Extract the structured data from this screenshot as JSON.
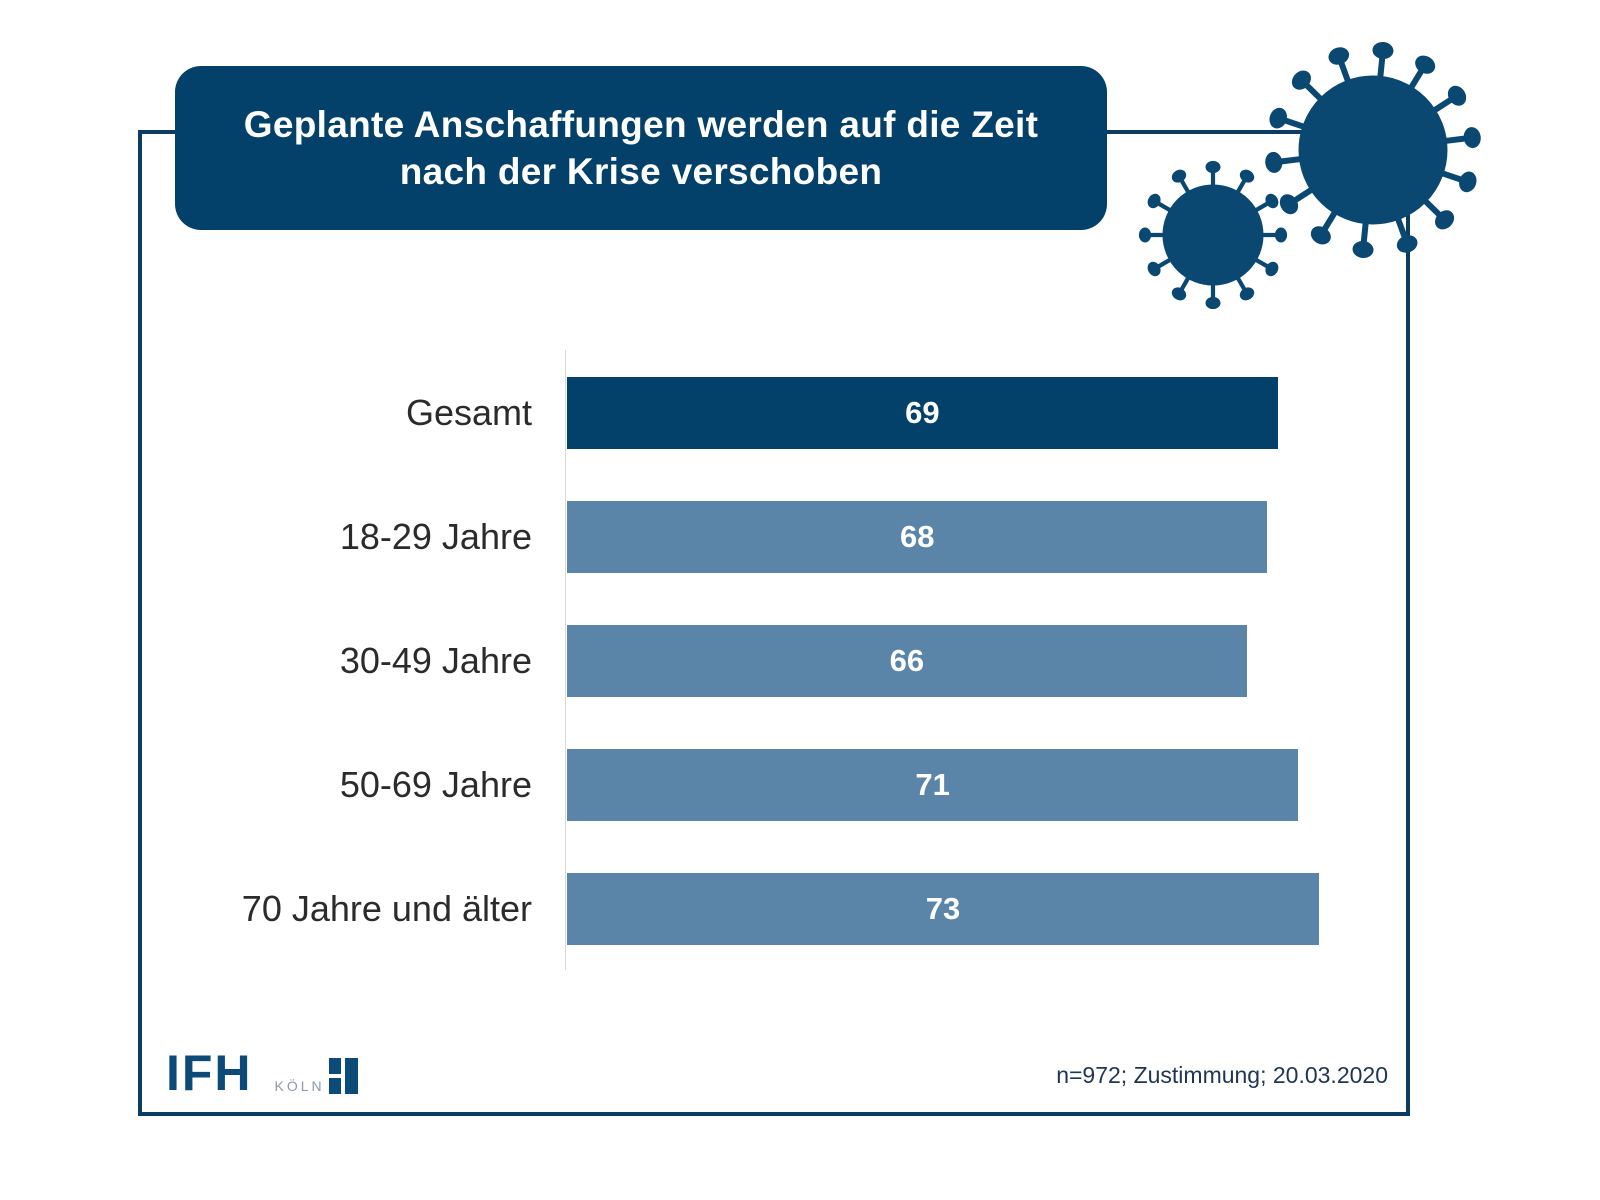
{
  "header": {
    "title_line1": "Geplante Anschaffungen werden auf die Zeit",
    "title_line2": "nach der Krise verschoben"
  },
  "decoration": {
    "icon": "coronavirus-icon"
  },
  "colors": {
    "frame": "#0d3c63",
    "title_bg": "#03416a",
    "bar_highlight": "#03416a",
    "bar_default": "#5a85a8",
    "virus": "#0a4872"
  },
  "chart_data": {
    "type": "bar",
    "orientation": "horizontal",
    "title": "Geplante Anschaffungen werden auf die Zeit nach der Krise verschoben",
    "categories": [
      "Gesamt",
      "18-29 Jahre",
      "30-49 Jahre",
      "50-69 Jahre",
      "70 Jahre und älter"
    ],
    "values": [
      69,
      68,
      66,
      71,
      73
    ],
    "value_labels": [
      "69",
      "68",
      "66",
      "71",
      "73"
    ],
    "highlight": [
      true,
      false,
      false,
      false,
      false
    ],
    "xlabel": "",
    "ylabel": "",
    "xlim": [
      0,
      100
    ],
    "unit": "%",
    "grid": false,
    "legend": "none"
  },
  "footer": {
    "note": "n=972; Zustimmung; 20.03.2020",
    "logo_main": "IFH",
    "logo_sub": "KÖLN"
  }
}
